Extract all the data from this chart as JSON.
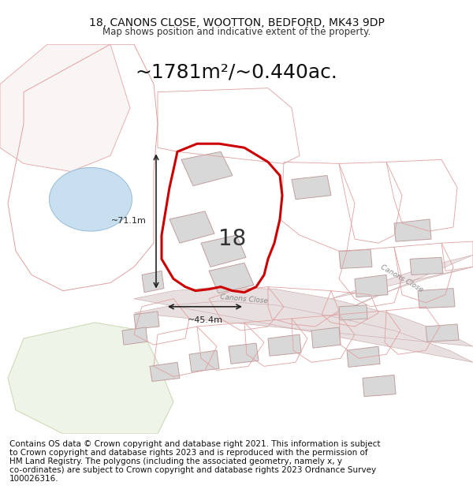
{
  "title_line1": "18, CANONS CLOSE, WOOTTON, BEDFORD, MK43 9DP",
  "title_line2": "Map shows position and indicative extent of the property.",
  "area_text": "~1781m²/~0.440ac.",
  "label_height": "~71.1m",
  "label_width": "~45.4m",
  "property_number": "18",
  "road_label1": "Canons Close",
  "road_label2": "Canons Close",
  "footer_text": "Contains OS data © Crown copyright and database right 2021. This information is subject to Crown copyright and database rights 2023 and is reproduced with the permission of HM Land Registry. The polygons (including the associated geometry, namely x, y co-ordinates) are subject to Crown copyright and database rights 2023 Ordnance Survey 100026316.",
  "bg_color": "#ffffff",
  "map_bg_color": "#f9f8f7",
  "highlight_color": "#cc0000",
  "road_color": "#d4b0b0",
  "building_fill": "#d8d8d8",
  "building_edge": "#c0a0a0",
  "water_fill": "#c8dff0",
  "water_edge": "#a0c0d8",
  "green_fill": "#e8f0e0",
  "green_edge": "#c8d8b0",
  "dimension_color": "#222222",
  "title_fontsize": 10,
  "area_fontsize": 18,
  "footer_fontsize": 8
}
